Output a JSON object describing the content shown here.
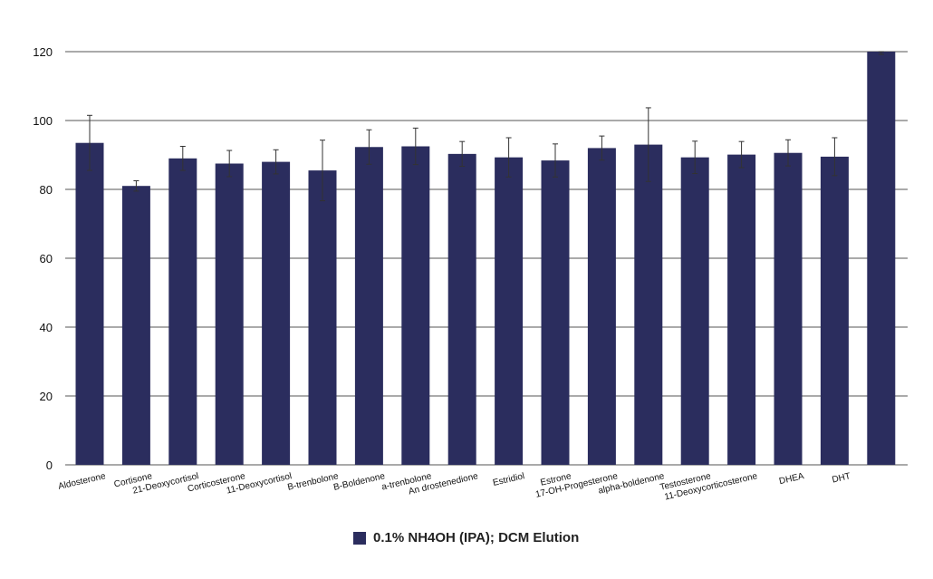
{
  "chart_data": {
    "type": "bar",
    "title": "",
    "xlabel": "",
    "ylabel": "",
    "ylim": [
      0,
      120
    ],
    "yticks": [
      0,
      20,
      40,
      60,
      80,
      100,
      120
    ],
    "grid": true,
    "legend_position": "bottom-center",
    "bar_color": "#2b2d5e",
    "categories": [
      "Aldosterone",
      "Cortisone",
      "21-Deoxycortisol",
      "Corticosterone",
      "11-Deoxycortisol",
      "B-trenbolone",
      "B-Boldenone",
      "a-trenbolone",
      "An drostenedione",
      "Estridiol",
      "Estrone",
      "17-OH-Progesterone",
      "alpha-boldenone",
      "Testosterone",
      "11-Deoxycorticosterone",
      "DHEA",
      "DHT",
      ""
    ],
    "series": [
      {
        "name": "0.1% NH4OH (IPA); DCM Elution",
        "values": [
          93.5,
          81,
          89,
          87.5,
          88,
          85.5,
          92.3,
          92.5,
          90.3,
          89.3,
          88.4,
          92,
          93,
          89.3,
          90.1,
          90.6,
          89.5,
          120
        ],
        "errors": [
          8,
          1.5,
          3.5,
          3.8,
          3.5,
          8.8,
          5,
          5.3,
          3.6,
          5.7,
          4.8,
          3.5,
          10.7,
          4.7,
          3.8,
          3.8,
          5.5,
          0.8
        ]
      }
    ]
  },
  "legend": {
    "label": "0.1% NH4OH (IPA); DCM Elution"
  }
}
